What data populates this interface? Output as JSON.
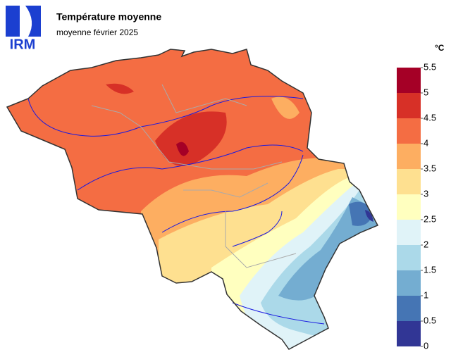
{
  "header": {
    "logo": "IRM",
    "title": "Température moyenne",
    "subtitle": "moyenne février 2025"
  },
  "legend": {
    "unit": "°C",
    "ticks": [
      0,
      0.5,
      1,
      1.5,
      2,
      2.5,
      3,
      3.5,
      4,
      4.5,
      5,
      5.5
    ],
    "colors": [
      "#313695",
      "#4575b4",
      "#74add1",
      "#abd9e9",
      "#e0f3f8",
      "#ffffbf",
      "#fee090",
      "#fdae61",
      "#f46d43",
      "#d73027",
      "#a50026"
    ]
  }
}
